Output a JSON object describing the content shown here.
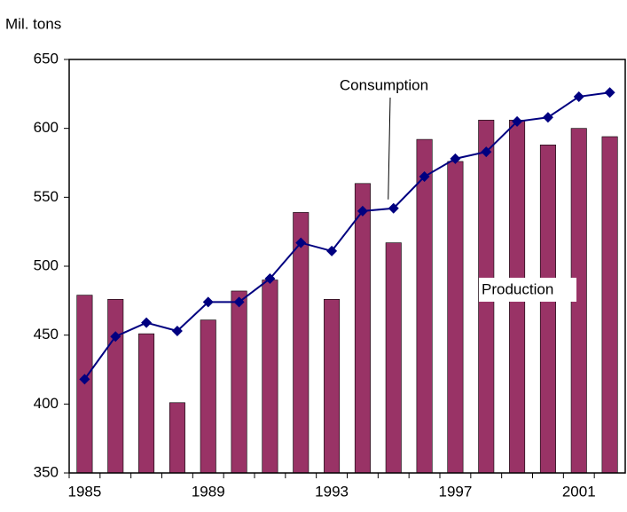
{
  "chart_data": {
    "type": "bar_line",
    "y_axis_label": "Mil. tons",
    "categories": [
      "1985",
      null,
      null,
      null,
      "1989",
      null,
      null,
      null,
      "1993",
      null,
      null,
      null,
      "1997",
      null,
      null,
      null,
      "2001",
      null
    ],
    "series": [
      {
        "name": "Production",
        "type": "bar",
        "color": "#993366",
        "values": [
          479,
          476,
          451,
          401,
          461,
          482,
          490,
          539,
          476,
          560,
          517,
          592,
          576,
          606,
          606,
          588,
          600,
          594
        ]
      },
      {
        "name": "Consumption",
        "type": "line",
        "color": "#000080",
        "values": [
          418,
          449,
          459,
          453,
          474,
          474,
          491,
          517,
          511,
          540,
          542,
          565,
          578,
          583,
          605,
          608,
          623,
          626
        ]
      }
    ],
    "ylim": [
      350,
      650
    ],
    "yticks": [
      350,
      400,
      450,
      500,
      550,
      600,
      650
    ],
    "grid": false
  }
}
